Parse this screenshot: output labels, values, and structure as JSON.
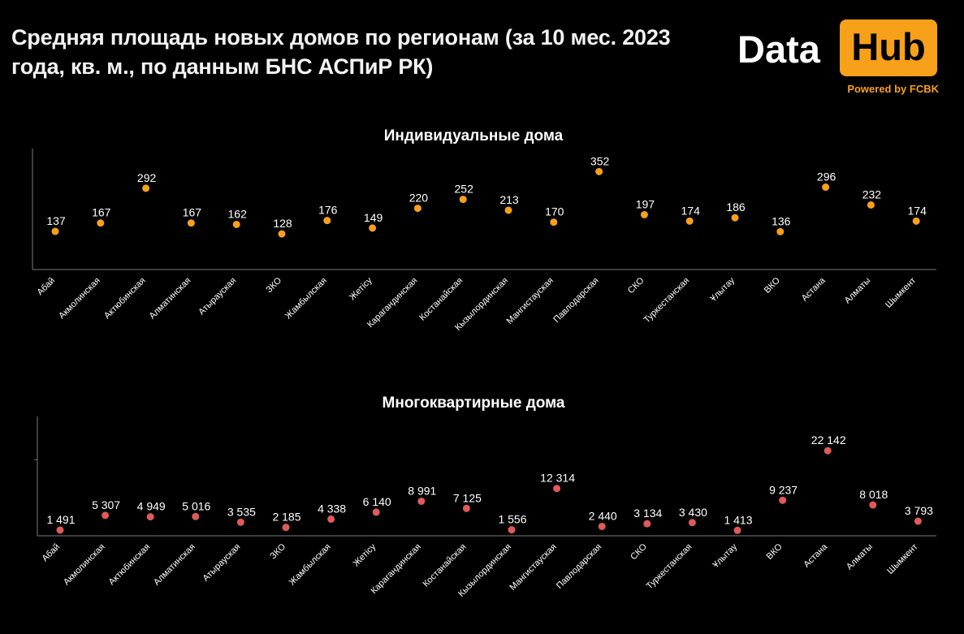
{
  "title": "Средняя площадь новых домов по регионам (за 10 мес. 2023 года, кв. м., по данным БНС АСПиР РК)",
  "logo": {
    "word1": "Data",
    "word2": "Hub",
    "tagline": "Powered by FCBK",
    "accent_color": "#f7a01a"
  },
  "chart_data": [
    {
      "type": "scatter",
      "title": "Индивидуальные дома",
      "marker_color": "#f7a01a",
      "categories": [
        "Абай",
        "Акмолинская",
        "Актюбинская",
        "Алматинская",
        "Атырауская",
        "ЗКО",
        "Жамбылская",
        "Жетісу",
        "Карагандинская",
        "Костанайская",
        "Кызылординская",
        "Мангистауская",
        "Павлодарская",
        "СКО",
        "Туркестанская",
        "Ұлытау",
        "ВКО",
        "Астана",
        "Алматы",
        "Шымкент"
      ],
      "values": [
        137,
        167,
        292,
        167,
        162,
        128,
        176,
        149,
        220,
        252,
        213,
        170,
        352,
        197,
        174,
        186,
        136,
        296,
        232,
        174
      ],
      "labels": [
        "137",
        "167",
        "292",
        "167",
        "162",
        "128",
        "176",
        "149",
        "220",
        "252",
        "213",
        "170",
        "352",
        "197",
        "174",
        "186",
        "136",
        "296",
        "232",
        "174"
      ],
      "ylim": [
        0,
        420
      ]
    },
    {
      "type": "scatter",
      "title": "Многоквартирные дома",
      "marker_color": "#e05a5a",
      "categories": [
        "Абай",
        "Акмолинская",
        "Актюбинская",
        "Алматинская",
        "Атырауская",
        "ЗКО",
        "Жамбылская",
        "Жетісу",
        "Карагандинская",
        "Костанайская",
        "Кызылординская",
        "Мангистауская",
        "Павлодарская",
        "СКО",
        "Туркестанская",
        "Ұлытау",
        "ВКО",
        "Астана",
        "Алматы",
        "Шымкент"
      ],
      "values": [
        1491,
        5307,
        4949,
        5016,
        3535,
        2185,
        4338,
        6140,
        8991,
        7125,
        1556,
        12314,
        2440,
        3134,
        3430,
        1413,
        9237,
        22142,
        8018,
        3793
      ],
      "labels": [
        "1 491",
        "5 307",
        "4 949",
        "5 016",
        "3 535",
        "2 185",
        "4 338",
        "6 140",
        "8 991",
        "7 125",
        "1 556",
        "12 314",
        "2 440",
        "3 134",
        "3 430",
        "1 413",
        "9 237",
        "22 142",
        "8 018",
        "3 793"
      ],
      "ylim": [
        0,
        30000
      ]
    }
  ]
}
